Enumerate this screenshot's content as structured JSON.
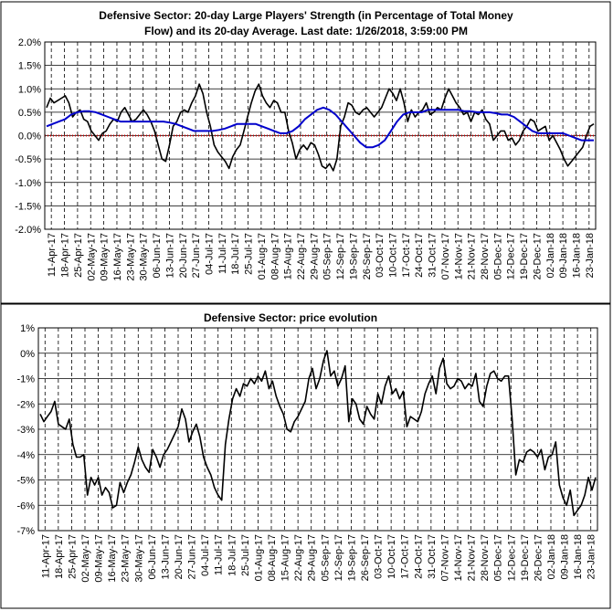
{
  "chart_data": [
    {
      "type": "line",
      "title_line1": "Defensive Sector: 20-day Large Players' Strength (in Percentage of Total Money",
      "title_line2": "Flow) and its 20-day Average. Last date: 1/26/2018, 3:59:00 PM",
      "xlabel": "",
      "ylabel": "",
      "ylim": [
        -2.0,
        2.0
      ],
      "yticks": [
        2.0,
        1.5,
        1.0,
        0.5,
        0.0,
        -0.5,
        -1.0,
        -1.5,
        -2.0
      ],
      "ytick_labels": [
        "2.0%",
        "1.5%",
        "1.0%",
        "0.5%",
        "0.0%",
        "-0.5%",
        "-1.0%",
        "-1.5%",
        "-2.0%"
      ],
      "x_tick_labels": [
        "11-Apr-17",
        "18-Apr-17",
        "25-Apr-17",
        "02-May-17",
        "09-May-17",
        "16-May-17",
        "23-May-17",
        "30-May-17",
        "06-Jun-17",
        "13-Jun-17",
        "20-Jun-17",
        "27-Jun-17",
        "04-Jul-17",
        "11-Jul-17",
        "18-Jul-17",
        "25-Jul-17",
        "01-Aug-17",
        "08-Aug-17",
        "15-Aug-17",
        "22-Aug-17",
        "29-Aug-17",
        "05-Sep-17",
        "12-Sep-17",
        "19-Sep-17",
        "26-Sep-17",
        "03-Oct-17",
        "10-Oct-17",
        "17-Oct-17",
        "24-Oct-17",
        "31-Oct-17",
        "07-Nov-17",
        "14-Nov-17",
        "21-Nov-17",
        "28-Nov-17",
        "05-Dec-17",
        "12-Dec-17",
        "19-Dec-17",
        "26-Dec-17",
        "02-Jan-18",
        "09-Jan-18",
        "16-Jan-18",
        "23-Jan-18"
      ],
      "grid": true,
      "colors": {
        "strength": "#000000",
        "average": "#0000cc",
        "zero_line": "#cc0000"
      },
      "series": [
        {
          "key": "strength",
          "values": [
            0.6,
            0.8,
            0.7,
            0.75,
            0.8,
            0.85,
            0.7,
            0.4,
            0.5,
            0.55,
            0.35,
            0.3,
            0.1,
            0.0,
            -0.1,
            0.05,
            0.1,
            0.25,
            0.35,
            0.3,
            0.5,
            0.6,
            0.45,
            0.3,
            0.35,
            0.45,
            0.55,
            0.45,
            0.3,
            0.1,
            -0.2,
            -0.5,
            -0.55,
            -0.2,
            0.2,
            0.3,
            0.5,
            0.55,
            0.5,
            0.7,
            0.85,
            1.1,
            0.9,
            0.5,
            0.2,
            -0.2,
            -0.35,
            -0.45,
            -0.55,
            -0.7,
            -0.45,
            -0.3,
            -0.2,
            0.1,
            0.4,
            0.7,
            0.95,
            1.1,
            0.85,
            0.7,
            0.6,
            0.75,
            0.7,
            0.5,
            0.5,
            0.1,
            -0.15,
            -0.5,
            -0.3,
            -0.2,
            -0.3,
            -0.15,
            -0.2,
            -0.4,
            -0.65,
            -0.7,
            -0.6,
            -0.75,
            -0.5,
            0.2,
            0.4,
            0.7,
            0.65,
            0.5,
            0.45,
            0.55,
            0.6,
            0.5,
            0.4,
            0.5,
            0.6,
            0.8,
            1.0,
            0.9,
            0.75,
            1.0,
            0.7,
            0.3,
            0.55,
            0.4,
            0.5,
            0.55,
            0.7,
            0.45,
            0.5,
            0.6,
            0.55,
            0.8,
            1.0,
            0.85,
            0.7,
            0.6,
            0.45,
            0.5,
            0.3,
            0.5,
            0.45,
            0.55,
            0.35,
            0.25,
            -0.1,
            0.0,
            0.1,
            0.1,
            -0.1,
            -0.05,
            -0.2,
            -0.1,
            0.1,
            0.2,
            0.35,
            0.3,
            0.1,
            0.15,
            0.2,
            -0.1,
            0.0,
            -0.15,
            -0.3,
            -0.5,
            -0.65,
            -0.55,
            -0.45,
            -0.35,
            -0.25,
            0.0,
            0.2,
            0.25
          ],
          "interpretation": "percent"
        },
        {
          "key": "average",
          "values": [
            0.2,
            0.25,
            0.3,
            0.35,
            0.45,
            0.5,
            0.52,
            0.52,
            0.5,
            0.45,
            0.4,
            0.35,
            0.3,
            0.3,
            0.3,
            0.3,
            0.3,
            0.3,
            0.3,
            0.3,
            0.28,
            0.25,
            0.2,
            0.15,
            0.1,
            0.1,
            0.1,
            0.1,
            0.12,
            0.15,
            0.2,
            0.25,
            0.25,
            0.25,
            0.25,
            0.2,
            0.15,
            0.1,
            0.05,
            0.05,
            0.1,
            0.2,
            0.35,
            0.45,
            0.55,
            0.6,
            0.55,
            0.45,
            0.3,
            0.15,
            0.0,
            -0.15,
            -0.25,
            -0.25,
            -0.2,
            -0.1,
            0.1,
            0.3,
            0.45,
            0.5,
            0.5,
            0.5,
            0.55,
            0.55,
            0.55,
            0.55,
            0.55,
            0.55,
            0.52,
            0.52,
            0.5,
            0.5,
            0.5,
            0.48,
            0.45,
            0.45,
            0.4,
            0.3,
            0.2,
            0.1,
            0.05,
            0.05,
            0.05,
            0.05,
            0.05,
            0.0,
            -0.05,
            -0.1,
            -0.1,
            -0.1
          ]
        }
      ]
    },
    {
      "type": "line",
      "title": "Defensive Sector: price evolution",
      "xlabel": "",
      "ylabel": "",
      "ylim": [
        -7,
        1
      ],
      "yticks": [
        1,
        0,
        -1,
        -2,
        -3,
        -4,
        -5,
        -6,
        -7
      ],
      "ytick_labels": [
        "1%",
        "0%",
        "-1%",
        "-2%",
        "-3%",
        "-4%",
        "-5%",
        "-6%",
        "-7%"
      ],
      "x_tick_labels": [
        "11-Apr-17",
        "18-Apr-17",
        "25-Apr-17",
        "02-May-17",
        "09-May-17",
        "16-May-17",
        "23-May-17",
        "30-May-17",
        "06-Jun-17",
        "13-Jun-17",
        "20-Jun-17",
        "27-Jun-17",
        "04-Jul-17",
        "11-Jul-17",
        "18-Jul-17",
        "25-Jul-17",
        "01-Aug-17",
        "08-Aug-17",
        "15-Aug-17",
        "22-Aug-17",
        "29-Aug-17",
        "05-Sep-17",
        "12-Sep-17",
        "19-Sep-17",
        "26-Sep-17",
        "03-Oct-17",
        "10-Oct-17",
        "17-Oct-17",
        "24-Oct-17",
        "31-Oct-17",
        "07-Nov-17",
        "14-Nov-17",
        "21-Nov-17",
        "28-Nov-17",
        "05-Dec-17",
        "12-Dec-17",
        "19-Dec-17",
        "26-Dec-17",
        "02-Jan-18",
        "09-Jan-18",
        "16-Jan-18",
        "23-Jan-18"
      ],
      "grid": true,
      "colors": {
        "price": "#000000"
      },
      "series": [
        {
          "key": "price",
          "values": [
            -2.4,
            -2.7,
            -2.5,
            -2.3,
            -1.9,
            -2.8,
            -2.9,
            -3.0,
            -2.6,
            -3.6,
            -4.1,
            -4.1,
            -4.0,
            -5.6,
            -4.9,
            -5.2,
            -4.9,
            -5.6,
            -5.3,
            -5.5,
            -6.1,
            -6.0,
            -5.1,
            -5.5,
            -5.1,
            -4.8,
            -4.3,
            -3.7,
            -4.2,
            -4.5,
            -4.7,
            -3.8,
            -4.1,
            -4.5,
            -4.0,
            -3.8,
            -3.5,
            -3.2,
            -2.9,
            -2.2,
            -2.6,
            -3.5,
            -3.1,
            -2.8,
            -3.3,
            -4.1,
            -4.5,
            -4.8,
            -5.3,
            -5.6,
            -5.8,
            -3.6,
            -2.6,
            -1.8,
            -1.4,
            -1.7,
            -1.2,
            -1.3,
            -1.0,
            -1.2,
            -0.9,
            -1.1,
            -0.7,
            -1.4,
            -1.1,
            -1.7,
            -2.1,
            -2.4,
            -3.0,
            -3.1,
            -2.7,
            -2.5,
            -2.2,
            -1.9,
            -1.0,
            -0.6,
            -1.4,
            -1.0,
            -0.3,
            0.1,
            -0.9,
            -0.7,
            -1.3,
            -1.0,
            -0.5,
            -2.7,
            -1.8,
            -2.0,
            -2.6,
            -2.8,
            -2.1,
            -2.4,
            -2.6,
            -1.6,
            -2.0,
            -1.3,
            -0.9,
            -1.6,
            -1.4,
            -1.8,
            -1.5,
            -2.9,
            -2.5,
            -2.6,
            -2.7,
            -2.3,
            -1.6,
            -1.2,
            -0.9,
            -1.6,
            -0.6,
            -0.2,
            -1.2,
            -1.4,
            -1.3,
            -1.0,
            -1.1,
            -1.4,
            -1.2,
            -1.3,
            -0.8,
            -1.9,
            -2.1,
            -1.3,
            -0.8,
            -0.7,
            -1.0,
            -1.1,
            -0.9,
            -0.9,
            -2.6,
            -4.8,
            -4.2,
            -4.3,
            -3.9,
            -3.8,
            -3.9,
            -4.1,
            -3.8,
            -4.6,
            -4.1,
            -4.0,
            -3.5,
            -5.2,
            -5.7,
            -6.0,
            -5.4,
            -6.4,
            -6.2,
            -6.0,
            -5.6,
            -4.9,
            -5.4,
            -4.9
          ]
        }
      ]
    }
  ]
}
